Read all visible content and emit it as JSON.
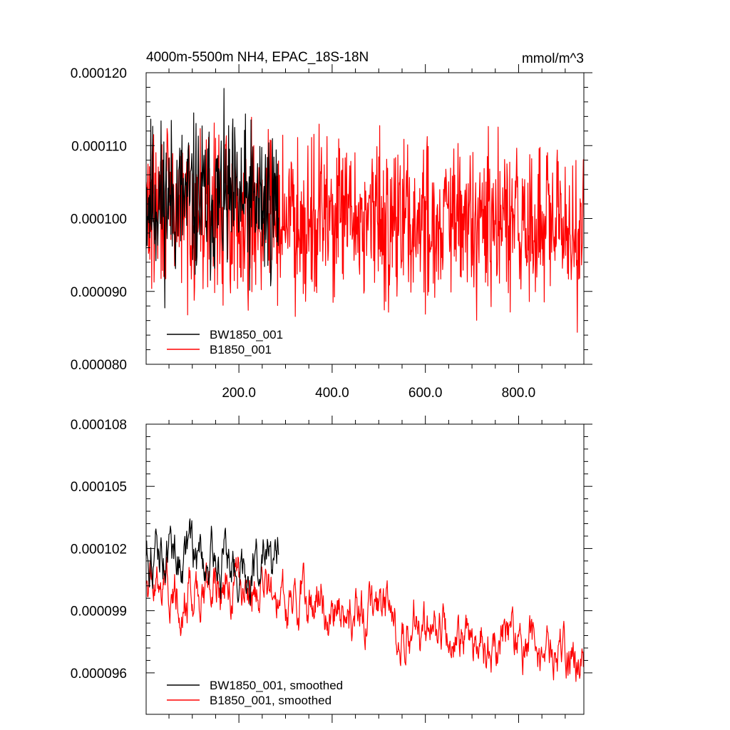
{
  "chart_data": [
    {
      "type": "line",
      "title": "4000m-5500m NH4, EPAC_18S-18N",
      "units": "mmol/m^3",
      "xlim": [
        1,
        940
      ],
      "ylim": [
        8e-05,
        0.00012
      ],
      "x_ticks": [
        200,
        400,
        600,
        800
      ],
      "x_tick_labels": [
        "200.0",
        "400.0",
        "600.0",
        "800.0"
      ],
      "y_ticks": [
        8e-05,
        9e-05,
        0.0001,
        0.00011,
        0.00012
      ],
      "y_tick_labels": [
        "0.000080",
        "0.000090",
        "0.000100",
        "0.000110",
        "0.000120"
      ],
      "legend_position": "bottom-left",
      "series": [
        {
          "name": "BW1850_001",
          "color": "#000000",
          "x_range": [
            1,
            285
          ],
          "center": 0.000102,
          "amplitude": 6.8e-06,
          "trend": -2.5e-06,
          "seed": 11
        },
        {
          "name": "B1850_001",
          "color": "#ff0000",
          "x_range": [
            1,
            940
          ],
          "center": 0.0001005,
          "amplitude": 6.8e-06,
          "trend": -3e-06,
          "seed": 29
        }
      ]
    },
    {
      "type": "line",
      "title": "",
      "xlim": [
        1,
        940
      ],
      "ylim": [
        9.4e-05,
        0.000108
      ],
      "x_ticks": [
        200,
        400,
        600,
        800
      ],
      "x_tick_labels": [],
      "y_ticks": [
        9.6e-05,
        9.9e-05,
        0.000102,
        0.000105,
        0.000108
      ],
      "y_tick_labels": [
        "0.000096",
        "0.000099",
        "0.000102",
        "0.000105",
        "0.000108"
      ],
      "legend_position": "bottom-left",
      "series": [
        {
          "name": "BW1850_001, smoothed",
          "color": "#000000",
          "x_range": [
            1,
            285
          ],
          "center": 0.000101,
          "amplitude": 1.1e-06,
          "trend": -3.5e-06,
          "seed": 11
        },
        {
          "name": "B1850_001, smoothed",
          "color": "#ff0000",
          "x_range": [
            1,
            940
          ],
          "center": 9.95e-05,
          "amplitude": 1.1e-06,
          "trend": -4e-06,
          "seed": 29
        }
      ]
    }
  ]
}
